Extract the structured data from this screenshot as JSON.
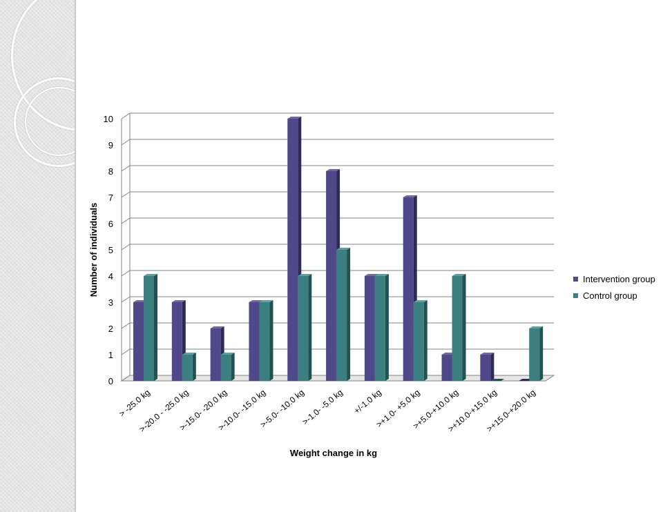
{
  "colors": {
    "intervention_front": "#4f4989",
    "intervention_side": "#2d2a55",
    "intervention_top": "#6e68a8",
    "control_front": "#3b7f80",
    "control_side": "#225152",
    "control_top": "#5aa1a2",
    "gridline": "#808080",
    "axis_text": "#000000"
  },
  "chart_data": {
    "type": "bar",
    "style": "3d-clustered-column",
    "xlabel": "Weight change in kg",
    "ylabel": "Number of individuals",
    "ylim": [
      0,
      10
    ],
    "yticks": [
      0,
      1,
      2,
      3,
      4,
      5,
      6,
      7,
      8,
      9,
      10
    ],
    "grid": true,
    "legend_position": "right",
    "categories": [
      "> -25.0 kg",
      ">-20.0 - -25.0 kg",
      ">-15.0- -20.0 kg",
      ">-10.0- -15.0 kg",
      ">-5.0- -10.0 kg",
      ">-1.0- -5.0 kg",
      "+/-1.0 kg",
      ">+1.0- +5.0 kg",
      ">+5.0-+10.0 kg",
      ">+10.0-+15.0 kg",
      ">+15.0-+20.0 kg"
    ],
    "series": [
      {
        "name": "Intervention group",
        "values": [
          3,
          3,
          2,
          3,
          10,
          8,
          4,
          7,
          1,
          1,
          0
        ]
      },
      {
        "name": "Control group",
        "values": [
          4,
          1,
          1,
          3,
          4,
          5,
          4,
          3,
          4,
          0,
          2
        ]
      }
    ]
  }
}
